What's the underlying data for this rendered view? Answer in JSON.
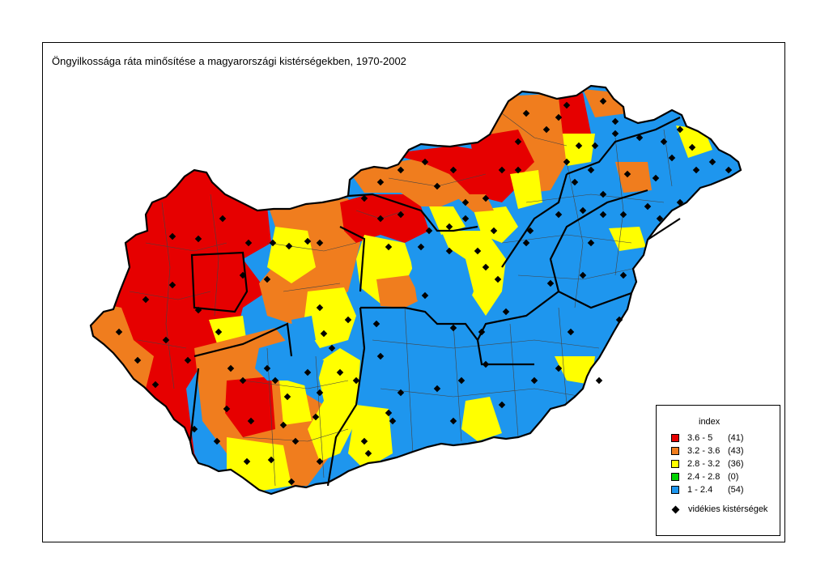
{
  "title": "Öngyilkossága ráta minősítése a magyarországi kistérségekben, 1970-2002",
  "legend": {
    "title": "index",
    "classes": [
      {
        "range": "3.6 - 5",
        "count": "(41)",
        "color": "#e60000"
      },
      {
        "range": "3.2 - 3.6",
        "count": "(43)",
        "color": "#f07d1e"
      },
      {
        "range": "2.8 - 3.2",
        "count": "(36)",
        "color": "#ffff00"
      },
      {
        "range": "2.4 - 2.8",
        "count": "(0)",
        "color": "#00d200"
      },
      {
        "range": "1    - 2.4",
        "count": "(54)",
        "color": "#1e96ee"
      }
    ],
    "marker_label": "vidékies kistérségek"
  }
}
